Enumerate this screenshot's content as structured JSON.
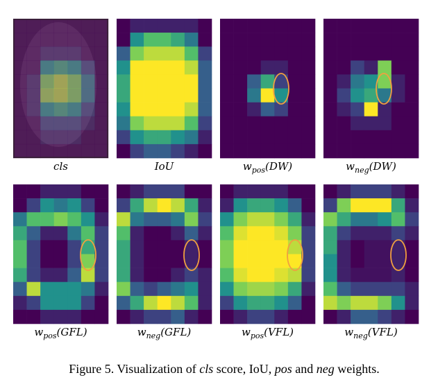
{
  "panels": [
    {
      "label": {
        "base": "cls"
      },
      "grid": [
        [
          0,
          0,
          0,
          0,
          0,
          0,
          0
        ],
        [
          0,
          0,
          0,
          0,
          0,
          0,
          0
        ],
        [
          0,
          0,
          0.1,
          0.1,
          0.1,
          0,
          0
        ],
        [
          0,
          0,
          0.5,
          0.6,
          0.5,
          0.2,
          0
        ],
        [
          0,
          0.1,
          0.8,
          0.9,
          0.8,
          0.4,
          0
        ],
        [
          0,
          0.1,
          0.85,
          0.9,
          0.8,
          0.4,
          0
        ],
        [
          0,
          0.1,
          0.5,
          0.6,
          0.5,
          0.2,
          0
        ],
        [
          0,
          0,
          0.2,
          0.2,
          0.2,
          0.1,
          0
        ],
        [
          0,
          0,
          0.1,
          0.1,
          0.1,
          0,
          0
        ],
        [
          0,
          0,
          0,
          0,
          0,
          0,
          0
        ]
      ]
    },
    {
      "label": {
        "base": "IoU"
      },
      "grid": [
        [
          0,
          0.1,
          0.1,
          0.1,
          0.1,
          0.1,
          0
        ],
        [
          0,
          0.5,
          0.7,
          0.7,
          0.6,
          0.4,
          0
        ],
        [
          0.3,
          0.8,
          0.9,
          0.9,
          0.9,
          0.7,
          0.2
        ],
        [
          0.5,
          1,
          1,
          1,
          1,
          0.9,
          0.3
        ],
        [
          0.6,
          1,
          1,
          1,
          1,
          1,
          0.3
        ],
        [
          0.6,
          1,
          1,
          1,
          1,
          1,
          0.3
        ],
        [
          0.5,
          1,
          1,
          1,
          1,
          0.9,
          0.3
        ],
        [
          0.4,
          0.8,
          0.9,
          0.9,
          0.9,
          0.7,
          0.2
        ],
        [
          0.2,
          0.5,
          0.6,
          0.6,
          0.5,
          0.4,
          0.1
        ],
        [
          0,
          0.2,
          0.3,
          0.3,
          0.2,
          0.1,
          0
        ]
      ]
    },
    {
      "label": {
        "base": "w",
        "sub": "pos",
        "arg": "(DW)"
      },
      "grid": [
        [
          0,
          0,
          0,
          0,
          0,
          0,
          0
        ],
        [
          0,
          0,
          0,
          0,
          0,
          0,
          0
        ],
        [
          0,
          0,
          0,
          0,
          0,
          0,
          0
        ],
        [
          0,
          0,
          0,
          0.1,
          0.1,
          0,
          0
        ],
        [
          0,
          0,
          0.3,
          0.6,
          0.2,
          0,
          0
        ],
        [
          0,
          0,
          0.4,
          1,
          0.5,
          0,
          0
        ],
        [
          0,
          0,
          0.1,
          0.3,
          0.2,
          0,
          0
        ],
        [
          0,
          0,
          0,
          0,
          0,
          0,
          0
        ],
        [
          0,
          0,
          0,
          0,
          0,
          0,
          0
        ],
        [
          0,
          0,
          0,
          0,
          0,
          0,
          0
        ]
      ]
    },
    {
      "label": {
        "base": "w",
        "sub": "neg",
        "arg": "(DW)"
      },
      "grid": [
        [
          0,
          0,
          0,
          0,
          0,
          0,
          0
        ],
        [
          0,
          0,
          0,
          0,
          0,
          0,
          0
        ],
        [
          0,
          0,
          0,
          0,
          0,
          0,
          0
        ],
        [
          0,
          0,
          0.2,
          0.1,
          0.8,
          0,
          0
        ],
        [
          0,
          0.1,
          0.4,
          0.5,
          0.8,
          0.1,
          0
        ],
        [
          0,
          0.2,
          0.5,
          0.6,
          0.4,
          0.1,
          0
        ],
        [
          0,
          0.1,
          0.2,
          1,
          0.1,
          0,
          0
        ],
        [
          0,
          0,
          0.1,
          0.1,
          0.1,
          0,
          0
        ],
        [
          0,
          0,
          0,
          0,
          0,
          0,
          0
        ],
        [
          0,
          0,
          0,
          0,
          0,
          0,
          0
        ]
      ]
    },
    {
      "label": {
        "base": "w",
        "sub": "pos",
        "arg": "(GFL)"
      },
      "grid": [
        [
          0,
          0,
          0.1,
          0.1,
          0.1,
          0,
          0
        ],
        [
          0,
          0.2,
          0.5,
          0.4,
          0.5,
          0.2,
          0
        ],
        [
          0.4,
          0.7,
          0.7,
          0.8,
          0.7,
          0.5,
          0.1
        ],
        [
          0.6,
          0.3,
          0.1,
          0.1,
          0.4,
          0.7,
          0.2
        ],
        [
          0.7,
          0.2,
          0,
          0,
          0.2,
          0.6,
          0.2
        ],
        [
          0.7,
          0.2,
          0,
          0,
          0.2,
          0.8,
          0.2
        ],
        [
          0.6,
          0.2,
          0.1,
          0.1,
          0.3,
          0.9,
          0.2
        ],
        [
          0.3,
          0.9,
          0.5,
          0.5,
          0.5,
          0.4,
          0.1
        ],
        [
          0.1,
          0.2,
          0.5,
          0.5,
          0.5,
          0.2,
          0
        ],
        [
          0,
          0,
          0.1,
          0.1,
          0.1,
          0,
          0
        ]
      ]
    },
    {
      "label": {
        "base": "w",
        "sub": "neg",
        "arg": "(GFL)"
      },
      "grid": [
        [
          0,
          0.1,
          0.2,
          0.2,
          0.2,
          0,
          0
        ],
        [
          0.2,
          0.6,
          0.9,
          1,
          0.9,
          0.6,
          0.1
        ],
        [
          0.9,
          0.4,
          0.3,
          0.3,
          0.4,
          0.8,
          0.2
        ],
        [
          0.7,
          0.1,
          0,
          0,
          0.1,
          0.3,
          0.1
        ],
        [
          0.6,
          0.1,
          0,
          0,
          0,
          0.1,
          0
        ],
        [
          0.6,
          0.1,
          0,
          0,
          0,
          0.1,
          0
        ],
        [
          0.6,
          0.1,
          0,
          0,
          0.1,
          0.2,
          0.1
        ],
        [
          0.8,
          0.3,
          0.2,
          0.3,
          0.4,
          0.5,
          0.1
        ],
        [
          0.3,
          0.6,
          0.9,
          1,
          0.9,
          0.7,
          0.1
        ],
        [
          0,
          0.1,
          0.2,
          0.2,
          0.3,
          0.1,
          0
        ]
      ]
    },
    {
      "label": {
        "base": "w",
        "sub": "pos",
        "arg": "(VFL)"
      },
      "grid": [
        [
          0,
          0.1,
          0.1,
          0.1,
          0.1,
          0,
          0
        ],
        [
          0.1,
          0.5,
          0.6,
          0.6,
          0.5,
          0.3,
          0
        ],
        [
          0.5,
          0.8,
          0.9,
          0.9,
          0.8,
          0.6,
          0.1
        ],
        [
          0.7,
          0.95,
          1,
          1,
          0.95,
          0.8,
          0.2
        ],
        [
          0.8,
          1,
          1,
          1,
          1,
          0.9,
          0.2
        ],
        [
          0.8,
          1,
          1,
          1,
          1,
          1,
          0.2
        ],
        [
          0.7,
          0.95,
          1,
          1,
          0.95,
          0.9,
          0.2
        ],
        [
          0.5,
          0.8,
          0.85,
          0.85,
          0.8,
          0.6,
          0.1
        ],
        [
          0.2,
          0.5,
          0.6,
          0.6,
          0.5,
          0.3,
          0
        ],
        [
          0,
          0.1,
          0.2,
          0.2,
          0.1,
          0,
          0
        ]
      ]
    },
    {
      "label": {
        "base": "w",
        "sub": "neg",
        "arg": "(VFL)"
      },
      "grid": [
        [
          0,
          0.1,
          0.2,
          0.2,
          0.2,
          0.1,
          0
        ],
        [
          0.2,
          0.8,
          1,
          1,
          1,
          0.6,
          0.1
        ],
        [
          0.8,
          0.6,
          0.4,
          0.4,
          0.5,
          0.7,
          0.2
        ],
        [
          0.6,
          0.2,
          0.1,
          0.1,
          0.1,
          0.2,
          0.1
        ],
        [
          0.6,
          0.1,
          0,
          0.05,
          0.05,
          0.1,
          0
        ],
        [
          0.5,
          0.1,
          0,
          0.05,
          0.05,
          0.1,
          0
        ],
        [
          0.5,
          0.1,
          0.05,
          0.05,
          0.05,
          0.1,
          0
        ],
        [
          0.7,
          0.3,
          0.2,
          0.2,
          0.2,
          0.2,
          0.1
        ],
        [
          0.9,
          0.8,
          0.9,
          0.9,
          0.8,
          0.5,
          0.1
        ],
        [
          0,
          0.1,
          0.3,
          0.3,
          0.2,
          0.1,
          0
        ]
      ]
    }
  ],
  "caption": [
    "Figure 5. Visualization of ",
    "cls",
    " score, IoU, ",
    "pos",
    " and ",
    "neg",
    " weights."
  ]
}
